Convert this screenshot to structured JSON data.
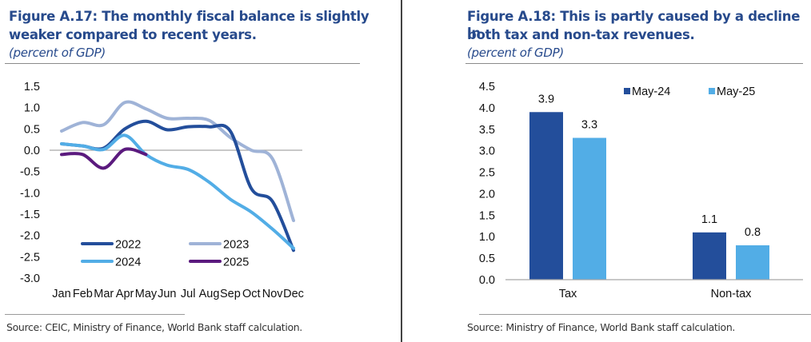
{
  "figures": {
    "left": {
      "title_line1": "Figure A.17: The monthly fiscal balance is slightly",
      "title_line2": "weaker compared to recent years.",
      "subtitle": "(percent of GDP)",
      "source": "Source: CEIC, Ministry of Finance, World Bank staff calculation."
    },
    "right": {
      "title_line1": "Figure A.18: This is partly caused by a decline in",
      "title_line2": "both tax and non-tax revenues.",
      "subtitle": "(percent of GDP)",
      "source": "Source: Ministry of Finance, World Bank staff calculation."
    }
  },
  "chart_data": [
    {
      "type": "line",
      "title": "Figure A.17: The monthly fiscal balance is slightly weaker compared to recent years.",
      "subtitle": "(percent of GDP)",
      "xlabel": "",
      "ylabel": "",
      "x": [
        "Jan",
        "Feb",
        "Mar",
        "Apr",
        "May",
        "Jun",
        "Jul",
        "Aug",
        "Sep",
        "Oct",
        "Nov",
        "Dec"
      ],
      "ylim": [
        -3.0,
        1.5
      ],
      "yticks": [
        "1.5",
        "1.0",
        "0.5",
        "0.0",
        "-0.5",
        "-1.0",
        "-1.5",
        "-2.0",
        "-2.5",
        "-3.0"
      ],
      "ytick_values": [
        1.5,
        1.0,
        0.5,
        0.0,
        -0.5,
        -1.0,
        -1.5,
        -2.0,
        -2.5,
        -3.0
      ],
      "grid": false,
      "zero_line": true,
      "legend_position": "bottom-inside",
      "series": [
        {
          "name": "2022",
          "color": "#234e9b",
          "values": [
            0.15,
            0.1,
            0.05,
            0.5,
            0.68,
            0.48,
            0.55,
            0.55,
            0.45,
            -0.9,
            -1.2,
            -2.35
          ]
        },
        {
          "name": "2023",
          "color": "#9fb3d7",
          "values": [
            0.45,
            0.65,
            0.6,
            1.12,
            0.97,
            0.75,
            0.75,
            0.7,
            0.3,
            0.0,
            -0.2,
            -1.65
          ]
        },
        {
          "name": "2024",
          "color": "#52ade6",
          "values": [
            0.15,
            0.1,
            0.02,
            0.35,
            -0.1,
            -0.35,
            -0.45,
            -0.75,
            -1.15,
            -1.45,
            -1.85,
            -2.3
          ]
        },
        {
          "name": "2025",
          "color": "#5b1a7e",
          "values": [
            -0.1,
            -0.1,
            -0.42,
            0.02,
            -0.1,
            null,
            null,
            null,
            null,
            null,
            null,
            null
          ]
        }
      ]
    },
    {
      "type": "bar",
      "title": "Figure A.18: This is partly caused by a decline in both tax and non-tax revenues.",
      "subtitle": "(percent of GDP)",
      "xlabel": "",
      "ylabel": "",
      "categories": [
        "Tax",
        "Non-tax"
      ],
      "ylim": [
        0.0,
        4.5
      ],
      "yticks": [
        "4.5",
        "4.0",
        "3.5",
        "3.0",
        "2.5",
        "2.0",
        "1.5",
        "1.0",
        "0.5",
        "0.0"
      ],
      "ytick_values": [
        4.5,
        4.0,
        3.5,
        3.0,
        2.5,
        2.0,
        1.5,
        1.0,
        0.5,
        0.0
      ],
      "grid": false,
      "legend_position": "top-right",
      "series": [
        {
          "name": "May-24",
          "color": "#234e9b",
          "values": [
            3.9,
            1.1
          ],
          "labels": [
            "3.9",
            "1.1"
          ]
        },
        {
          "name": "May-25",
          "color": "#52ade6",
          "values": [
            3.3,
            0.8
          ],
          "labels": [
            "3.3",
            "0.8"
          ]
        }
      ]
    }
  ]
}
